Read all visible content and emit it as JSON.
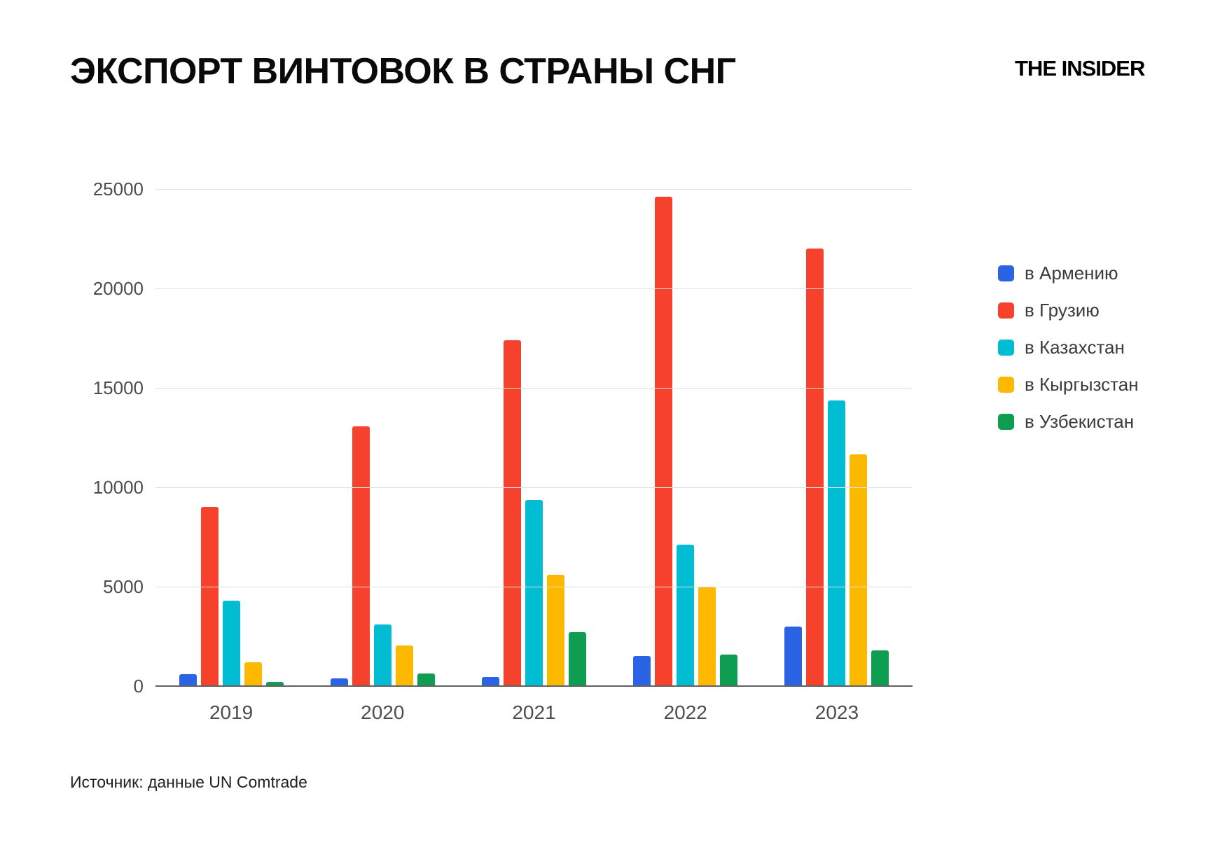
{
  "title": "ЭКСПОРТ ВИНТОВОК В СТРАНЫ СНГ",
  "logo": "THE INSIDER",
  "source": "Источник: данные UN Comtrade",
  "colors": {
    "grid": "#e0e0e0",
    "axis": "#616161",
    "tick_text": "#4d4d4d"
  },
  "chart_data": {
    "type": "bar",
    "title": "ЭКСПОРТ ВИНТОВОК В СТРАНЫ СНГ",
    "categories": [
      "2019",
      "2020",
      "2021",
      "2022",
      "2023"
    ],
    "series": [
      {
        "name": "в Армению",
        "color": "#2b63e5",
        "values": [
          600,
          400,
          450,
          1500,
          3000
        ]
      },
      {
        "name": "в Грузию",
        "color": "#f6412d",
        "values": [
          9000,
          13050,
          17400,
          24600,
          22000
        ]
      },
      {
        "name": "в Казахстан",
        "color": "#00bdd3",
        "values": [
          4300,
          3100,
          9350,
          7100,
          14350
        ]
      },
      {
        "name": "в Кыргызстан",
        "color": "#fcb900",
        "values": [
          1200,
          2050,
          5600,
          5000,
          11650
        ]
      },
      {
        "name": "в Узбекистан",
        "color": "#0f9d51",
        "values": [
          200,
          620,
          2700,
          1600,
          1800
        ]
      }
    ],
    "xlabel": "",
    "ylabel": "",
    "ylim": [
      0,
      25000
    ],
    "yticks": [
      0,
      5000,
      10000,
      15000,
      20000,
      25000
    ],
    "grid": true,
    "legend_position": "right"
  }
}
